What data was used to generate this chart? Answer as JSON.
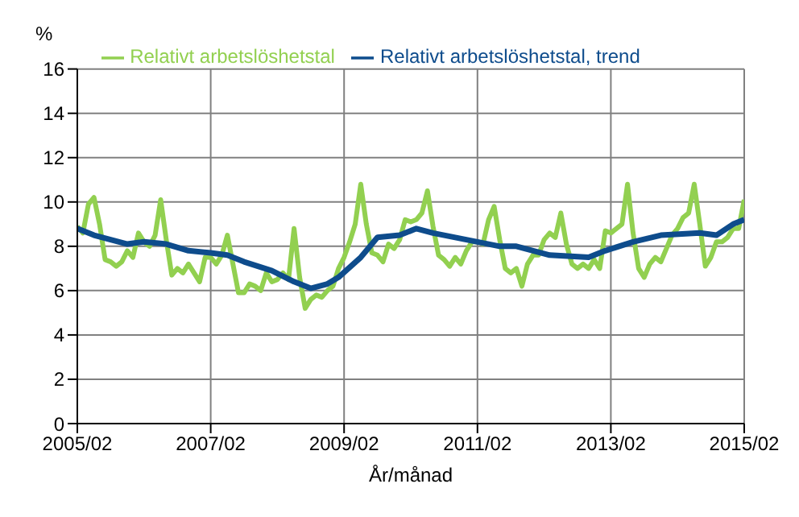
{
  "chart_data": {
    "type": "line",
    "xlabel": "År/månad",
    "ylabel": "%",
    "xlim": [
      "2005-02",
      "2015-02"
    ],
    "xticks": [
      {
        "value": "2005-02",
        "label": "2005/02"
      },
      {
        "value": "2007-02",
        "label": "2007/02"
      },
      {
        "value": "2009-02",
        "label": "2009/02"
      },
      {
        "value": "2011-02",
        "label": "2011/02"
      },
      {
        "value": "2013-02",
        "label": "2013/02"
      },
      {
        "value": "2015-02",
        "label": "2015/02"
      }
    ],
    "ylim": [
      0,
      16
    ],
    "yticks": [
      0,
      2,
      4,
      6,
      8,
      10,
      12,
      14,
      16
    ],
    "grid": true,
    "legend": "top",
    "marker": "none",
    "line_style": "solid",
    "series": [
      {
        "name": "Relativt arbetslöshetstal",
        "color": "#92d050",
        "x": [
          "2005-02",
          "2005-03",
          "2005-04",
          "2005-05",
          "2005-06",
          "2005-07",
          "2005-08",
          "2005-09",
          "2005-10",
          "2005-11",
          "2005-12",
          "2006-01",
          "2006-02",
          "2006-03",
          "2006-04",
          "2006-05",
          "2006-06",
          "2006-07",
          "2006-08",
          "2006-09",
          "2006-10",
          "2006-11",
          "2006-12",
          "2007-01",
          "2007-02",
          "2007-03",
          "2007-04",
          "2007-05",
          "2007-06",
          "2007-07",
          "2007-08",
          "2007-09",
          "2007-10",
          "2007-11",
          "2007-12",
          "2008-01",
          "2008-02",
          "2008-03",
          "2008-04",
          "2008-05",
          "2008-06",
          "2008-07",
          "2008-08",
          "2008-09",
          "2008-10",
          "2008-11",
          "2008-12",
          "2009-01",
          "2009-02",
          "2009-03",
          "2009-04",
          "2009-05",
          "2009-06",
          "2009-07",
          "2009-08",
          "2009-09",
          "2009-10",
          "2009-11",
          "2009-12",
          "2010-01",
          "2010-02",
          "2010-03",
          "2010-04",
          "2010-05",
          "2010-06",
          "2010-07",
          "2010-08",
          "2010-09",
          "2010-10",
          "2010-11",
          "2010-12",
          "2011-01",
          "2011-02",
          "2011-03",
          "2011-04",
          "2011-05",
          "2011-06",
          "2011-07",
          "2011-08",
          "2011-09",
          "2011-10",
          "2011-11",
          "2011-12",
          "2012-01",
          "2012-02",
          "2012-03",
          "2012-04",
          "2012-05",
          "2012-06",
          "2012-07",
          "2012-08",
          "2012-09",
          "2012-10",
          "2012-11",
          "2012-12",
          "2013-01",
          "2013-02",
          "2013-03",
          "2013-04",
          "2013-05",
          "2013-06",
          "2013-07",
          "2013-08",
          "2013-09",
          "2013-10",
          "2013-11",
          "2013-12",
          "2014-01",
          "2014-02",
          "2014-03",
          "2014-04",
          "2014-05",
          "2014-06",
          "2014-07",
          "2014-08",
          "2014-09",
          "2014-10",
          "2014-11",
          "2014-12",
          "2015-01",
          "2015-02"
        ],
        "values": [
          8.9,
          8.6,
          9.9,
          10.2,
          9.0,
          7.4,
          7.3,
          7.1,
          7.3,
          7.8,
          7.5,
          8.6,
          8.2,
          8.0,
          8.5,
          10.1,
          8.3,
          6.7,
          7.0,
          6.8,
          7.2,
          6.8,
          6.4,
          7.5,
          7.5,
          7.2,
          7.6,
          8.5,
          7.2,
          5.9,
          5.9,
          6.3,
          6.2,
          6.0,
          6.8,
          6.4,
          6.5,
          6.8,
          6.5,
          8.8,
          6.6,
          5.2,
          5.6,
          5.8,
          5.7,
          6.0,
          6.2,
          7.0,
          7.5,
          8.2,
          9.0,
          10.8,
          9.0,
          7.7,
          7.6,
          7.3,
          8.1,
          7.9,
          8.3,
          9.2,
          9.1,
          9.2,
          9.5,
          10.5,
          8.9,
          7.6,
          7.4,
          7.1,
          7.5,
          7.2,
          7.8,
          8.2,
          8.2,
          8.1,
          9.2,
          9.8,
          8.3,
          7.0,
          6.8,
          7.0,
          6.2,
          7.2,
          7.6,
          7.6,
          8.3,
          8.6,
          8.4,
          9.5,
          8.1,
          7.2,
          7.0,
          7.2,
          7.0,
          7.4,
          7.0,
          8.7,
          8.6,
          8.8,
          9.0,
          10.8,
          8.6,
          7.0,
          6.6,
          7.2,
          7.5,
          7.3,
          7.9,
          8.5,
          8.8,
          9.3,
          9.5,
          10.8,
          9.0,
          7.1,
          7.5,
          8.2,
          8.2,
          8.4,
          8.8,
          8.8,
          10.1
        ]
      },
      {
        "name": "Relativt arbetslöshetstal, trend",
        "color": "#0e4c8c",
        "x": [
          "2005-02",
          "2005-05",
          "2005-08",
          "2005-11",
          "2006-02",
          "2006-06",
          "2006-10",
          "2007-02",
          "2007-05",
          "2007-08",
          "2008-01",
          "2008-05",
          "2008-08",
          "2008-11",
          "2009-01",
          "2009-05",
          "2009-08",
          "2009-12",
          "2010-03",
          "2010-06",
          "2010-12",
          "2011-06",
          "2011-09",
          "2011-12",
          "2012-03",
          "2012-10",
          "2013-01",
          "2013-06",
          "2013-11",
          "2014-06",
          "2014-09",
          "2014-12",
          "2015-02"
        ],
        "values": [
          8.8,
          8.5,
          8.3,
          8.1,
          8.2,
          8.1,
          7.8,
          7.7,
          7.6,
          7.3,
          6.9,
          6.4,
          6.1,
          6.3,
          6.6,
          7.5,
          8.4,
          8.5,
          8.8,
          8.6,
          8.3,
          8.0,
          8.0,
          7.8,
          7.6,
          7.5,
          7.8,
          8.2,
          8.5,
          8.6,
          8.5,
          9.0,
          9.2
        ]
      }
    ]
  }
}
